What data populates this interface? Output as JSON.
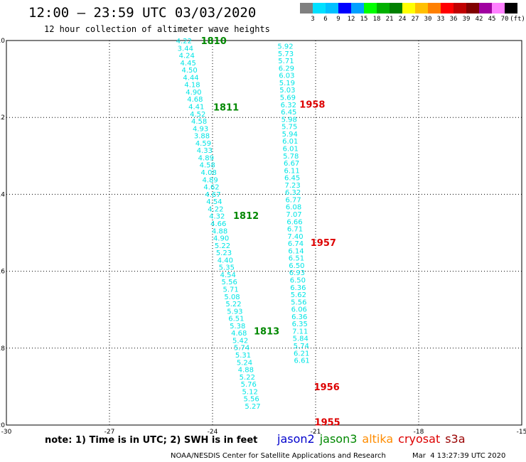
{
  "title": "12:00 – 23:59 UTC 03/03/2020",
  "subtitle": "12 hour collection of altimeter wave heights",
  "colorbar": {
    "unit": "(ft)",
    "labels": [
      "3",
      "6",
      "9",
      "12",
      "15",
      "18",
      "21",
      "24",
      "27",
      "30",
      "33",
      "36",
      "39",
      "42",
      "45",
      "70"
    ],
    "colors": [
      "#808080",
      "#00e0ff",
      "#00c0ff",
      "#0000ff",
      "#00a0ff",
      "#00ff00",
      "#00b000",
      "#008000",
      "#ffff00",
      "#ffc000",
      "#ff8000",
      "#ff0000",
      "#c00000",
      "#800000",
      "#a000a0",
      "#ff80ff",
      "#000000"
    ]
  },
  "axes": {
    "x_ticks": [
      "-30",
      "-27",
      "-24",
      "-21",
      "-18",
      "-15"
    ],
    "y_ticks": [
      "-20",
      "-18",
      "-16",
      "-14",
      "-12",
      "-10"
    ]
  },
  "tracks": [
    {
      "satellite": "jason3",
      "track_color": "#00e5e5",
      "label_color": "#008800",
      "points": [
        {
          "lon": -24.83,
          "lat": -10.0,
          "v": "4.22"
        },
        {
          "lon": -24.79,
          "lat": -10.19,
          "v": "3.44"
        },
        {
          "lon": -24.75,
          "lat": -10.38,
          "v": "4.24"
        },
        {
          "lon": -24.71,
          "lat": -10.57,
          "v": "4.45"
        },
        {
          "lon": -24.67,
          "lat": -10.76,
          "v": "4.50"
        },
        {
          "lon": -24.63,
          "lat": -10.95,
          "v": "4.44"
        },
        {
          "lon": -24.59,
          "lat": -11.14,
          "v": "4.18"
        },
        {
          "lon": -24.55,
          "lat": -11.33,
          "v": "4.90"
        },
        {
          "lon": -24.51,
          "lat": -11.52,
          "v": "4.68"
        },
        {
          "lon": -24.47,
          "lat": -11.71,
          "v": "4.41"
        },
        {
          "lon": -24.43,
          "lat": -11.9,
          "v": "4.52"
        },
        {
          "lon": -24.39,
          "lat": -12.09,
          "v": "4.58"
        },
        {
          "lon": -24.35,
          "lat": -12.28,
          "v": "4.93"
        },
        {
          "lon": -24.31,
          "lat": -12.47,
          "v": "3.88"
        },
        {
          "lon": -24.27,
          "lat": -12.66,
          "v": "4.59"
        },
        {
          "lon": -24.23,
          "lat": -12.85,
          "v": "4.33"
        },
        {
          "lon": -24.19,
          "lat": -13.04,
          "v": "4.89"
        },
        {
          "lon": -24.15,
          "lat": -13.23,
          "v": "4.58"
        },
        {
          "lon": -24.11,
          "lat": -13.42,
          "v": "4.08"
        },
        {
          "lon": -24.07,
          "lat": -13.61,
          "v": "4.89"
        },
        {
          "lon": -24.03,
          "lat": -13.8,
          "v": "4.62"
        },
        {
          "lon": -23.99,
          "lat": -13.99,
          "v": "4.67"
        },
        {
          "lon": -23.95,
          "lat": -14.18,
          "v": "4.54"
        },
        {
          "lon": -23.91,
          "lat": -14.37,
          "v": "4.22"
        },
        {
          "lon": -23.87,
          "lat": -14.56,
          "v": "4.32"
        },
        {
          "lon": -23.83,
          "lat": -14.75,
          "v": "4.66"
        },
        {
          "lon": -23.79,
          "lat": -14.94,
          "v": "4.88"
        },
        {
          "lon": -23.75,
          "lat": -15.13,
          "v": "4.90"
        },
        {
          "lon": -23.71,
          "lat": -15.32,
          "v": "5.22"
        },
        {
          "lon": -23.67,
          "lat": -15.51,
          "v": "5.23"
        },
        {
          "lon": -23.63,
          "lat": -15.7,
          "v": "4.40"
        },
        {
          "lon": -23.59,
          "lat": -15.89,
          "v": "5.35"
        },
        {
          "lon": -23.55,
          "lat": -16.08,
          "v": "4.54"
        },
        {
          "lon": -23.51,
          "lat": -16.27,
          "v": "5.56"
        },
        {
          "lon": -23.47,
          "lat": -16.46,
          "v": "5.71"
        },
        {
          "lon": -23.43,
          "lat": -16.65,
          "v": "5.08"
        },
        {
          "lon": -23.39,
          "lat": -16.84,
          "v": "5.22"
        },
        {
          "lon": -23.35,
          "lat": -17.03,
          "v": "5.93"
        },
        {
          "lon": -23.31,
          "lat": -17.22,
          "v": "6.51"
        },
        {
          "lon": -23.27,
          "lat": -17.41,
          "v": "5.38"
        },
        {
          "lon": -23.23,
          "lat": -17.6,
          "v": "4.68"
        },
        {
          "lon": -23.19,
          "lat": -17.79,
          "v": "5.42"
        },
        {
          "lon": -23.15,
          "lat": -17.98,
          "v": "5.74"
        },
        {
          "lon": -23.11,
          "lat": -18.17,
          "v": "5.31"
        },
        {
          "lon": -23.07,
          "lat": -18.36,
          "v": "5.24"
        },
        {
          "lon": -23.03,
          "lat": -18.55,
          "v": "4.88"
        },
        {
          "lon": -22.99,
          "lat": -18.74,
          "v": "5.22"
        },
        {
          "lon": -22.95,
          "lat": -18.93,
          "v": "5.76"
        },
        {
          "lon": -22.91,
          "lat": -19.12,
          "v": "5.12"
        },
        {
          "lon": -22.87,
          "lat": -19.31,
          "v": "5.56"
        },
        {
          "lon": -22.83,
          "lat": -19.5,
          "v": "5.27"
        }
      ],
      "time_labels": [
        {
          "text": "1810",
          "lon": -24.34,
          "lat": -10.0
        },
        {
          "text": "1811",
          "lon": -23.98,
          "lat": -11.73
        },
        {
          "text": "1812",
          "lon": -23.4,
          "lat": -14.55
        },
        {
          "text": "1813",
          "lon": -22.8,
          "lat": -17.55
        }
      ]
    },
    {
      "satellite": "cryosat",
      "track_color": "#00e5e5",
      "label_color": "#dd0000",
      "points": [
        {
          "lon": -21.88,
          "lat": -10.14,
          "v": "5.92"
        },
        {
          "lon": -21.87,
          "lat": -10.33,
          "v": "5.73"
        },
        {
          "lon": -21.86,
          "lat": -10.52,
          "v": "5.71"
        },
        {
          "lon": -21.85,
          "lat": -10.71,
          "v": "6.29"
        },
        {
          "lon": -21.84,
          "lat": -10.9,
          "v": "6.03"
        },
        {
          "lon": -21.83,
          "lat": -11.09,
          "v": "5.19"
        },
        {
          "lon": -21.82,
          "lat": -11.28,
          "v": "5.03"
        },
        {
          "lon": -21.81,
          "lat": -11.47,
          "v": "5.69"
        },
        {
          "lon": -21.79,
          "lat": -11.66,
          "v": "6.32"
        },
        {
          "lon": -21.78,
          "lat": -11.85,
          "v": "6.45"
        },
        {
          "lon": -21.77,
          "lat": -12.04,
          "v": "5.98"
        },
        {
          "lon": -21.76,
          "lat": -12.23,
          "v": "5.75"
        },
        {
          "lon": -21.75,
          "lat": -12.42,
          "v": "5.94"
        },
        {
          "lon": -21.74,
          "lat": -12.61,
          "v": "6.01"
        },
        {
          "lon": -21.73,
          "lat": -12.8,
          "v": "6.01"
        },
        {
          "lon": -21.72,
          "lat": -12.99,
          "v": "5.78"
        },
        {
          "lon": -21.7,
          "lat": -13.18,
          "v": "6.67"
        },
        {
          "lon": -21.69,
          "lat": -13.37,
          "v": "6.11"
        },
        {
          "lon": -21.68,
          "lat": -13.56,
          "v": "6.45"
        },
        {
          "lon": -21.67,
          "lat": -13.75,
          "v": "7.23"
        },
        {
          "lon": -21.66,
          "lat": -13.94,
          "v": "6.32"
        },
        {
          "lon": -21.65,
          "lat": -14.13,
          "v": "6.77"
        },
        {
          "lon": -21.64,
          "lat": -14.32,
          "v": "6.08"
        },
        {
          "lon": -21.63,
          "lat": -14.51,
          "v": "7.07"
        },
        {
          "lon": -21.61,
          "lat": -14.7,
          "v": "6.66"
        },
        {
          "lon": -21.6,
          "lat": -14.89,
          "v": "6.71"
        },
        {
          "lon": -21.59,
          "lat": -15.08,
          "v": "7.40"
        },
        {
          "lon": -21.58,
          "lat": -15.27,
          "v": "6.74"
        },
        {
          "lon": -21.57,
          "lat": -15.46,
          "v": "6.14"
        },
        {
          "lon": -21.56,
          "lat": -15.65,
          "v": "6.51"
        },
        {
          "lon": -21.55,
          "lat": -15.84,
          "v": "6.50"
        },
        {
          "lon": -21.54,
          "lat": -16.03,
          "v": "6.93"
        },
        {
          "lon": -21.52,
          "lat": -16.22,
          "v": "6.50"
        },
        {
          "lon": -21.51,
          "lat": -16.41,
          "v": "6.36"
        },
        {
          "lon": -21.5,
          "lat": -16.6,
          "v": "5.62"
        },
        {
          "lon": -21.49,
          "lat": -16.79,
          "v": "5.56"
        },
        {
          "lon": -21.48,
          "lat": -16.98,
          "v": "6.06"
        },
        {
          "lon": -21.47,
          "lat": -17.17,
          "v": "6.36"
        },
        {
          "lon": -21.46,
          "lat": -17.36,
          "v": "6.35"
        },
        {
          "lon": -21.45,
          "lat": -17.55,
          "v": "7.11"
        },
        {
          "lon": -21.44,
          "lat": -17.74,
          "v": "5.84"
        },
        {
          "lon": -21.42,
          "lat": -17.93,
          "v": "5.74"
        },
        {
          "lon": -21.41,
          "lat": -18.12,
          "v": "6.21"
        },
        {
          "lon": -21.4,
          "lat": -18.31,
          "v": "6.61"
        }
      ],
      "time_labels": [
        {
          "text": "1958",
          "lon": -21.47,
          "lat": -11.65
        },
        {
          "text": "1957",
          "lon": -21.15,
          "lat": -15.25
        },
        {
          "text": "1956",
          "lon": -21.05,
          "lat": -19.0
        },
        {
          "text": "1955",
          "lon": -21.03,
          "lat": -19.92
        }
      ]
    }
  ],
  "note": "note: 1) Time is in UTC; 2) SWH is in feet",
  "legend": [
    {
      "name": "jason2",
      "color": "#0000cc"
    },
    {
      "name": "jason3",
      "color": "#008800"
    },
    {
      "name": "altika",
      "color": "#ff8c00"
    },
    {
      "name": "cryosat",
      "color": "#dd0000"
    },
    {
      "name": "s3a",
      "color": "#990000"
    }
  ],
  "footer": "NOAA/NESDIS Center for Satellite Applications and Research",
  "footer_date": "Mar  4 13:27:39 UTC 2020"
}
